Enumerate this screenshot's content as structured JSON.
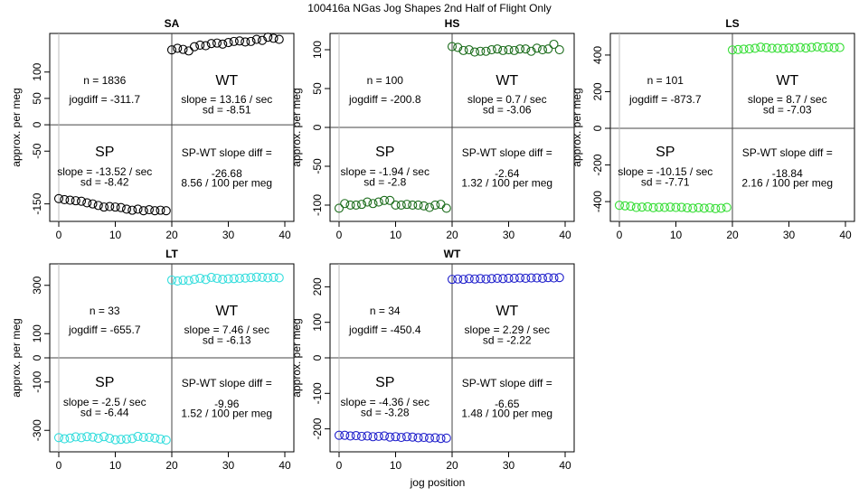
{
  "figure": {
    "title": "100416a   NGas Jog Shapes 2nd Half of Flight Only",
    "shared_xlabel": "jog position",
    "shared_ylabel": "approx. per meg"
  },
  "colors": {
    "SA": "#000000",
    "HS": "#1a6b1a",
    "LS": "#33dd33",
    "LT": "#33dddd",
    "WT": "#2222cc"
  },
  "chart_data": [
    {
      "type": "scatter",
      "title": "SA",
      "color": "#000000",
      "xlabel": "",
      "ylabel": "approx. per meg",
      "xlim": [
        0,
        40
      ],
      "ylim": [
        -170,
        160
      ],
      "xticks": [
        0,
        10,
        20,
        30,
        40
      ],
      "yticks": [
        -150,
        -50,
        0,
        50,
        100
      ],
      "labels": {
        "n": "n = 1836",
        "jogdiff": "jogdiff = -311.7",
        "wt": "WT",
        "wt_slope": "slope = 13.16 / sec",
        "wt_sd": "sd = -8.51",
        "sp": "SP",
        "sp_slope": "slope = -13.52 / sec",
        "sp_sd": "sd = -8.42",
        "diff_title": "SP-WT slope diff =",
        "diff_val": "-26.68",
        "diff_rate": "8.56 / 100 per meg"
      },
      "series": [
        {
          "name": "SP",
          "x": [
            0,
            1,
            2,
            3,
            4,
            5,
            6,
            7,
            8,
            9,
            10,
            11,
            12,
            13,
            14,
            15,
            16,
            17,
            18,
            19
          ],
          "y": [
            -140,
            -142,
            -143,
            -144,
            -145,
            -148,
            -150,
            -153,
            -156,
            -155,
            -156,
            -157,
            -160,
            -162,
            -160,
            -163,
            -161,
            -163,
            -162,
            -163
          ]
        },
        {
          "name": "WT",
          "x": [
            20,
            21,
            22,
            23,
            24,
            25,
            26,
            27,
            28,
            29,
            30,
            31,
            32,
            33,
            34,
            35,
            36,
            37,
            38,
            39
          ],
          "y": [
            142,
            145,
            143,
            140,
            148,
            151,
            150,
            154,
            155,
            153,
            156,
            158,
            159,
            157,
            158,
            162,
            160,
            166,
            164,
            162
          ]
        }
      ]
    },
    {
      "type": "scatter",
      "title": "HS",
      "color": "#1a6b1a",
      "xlabel": "",
      "ylabel": "approx. per meg",
      "xlim": [
        0,
        40
      ],
      "ylim": [
        -112,
        112
      ],
      "xticks": [
        0,
        10,
        20,
        30,
        40
      ],
      "yticks": [
        -100,
        -50,
        0,
        50,
        100
      ],
      "labels": {
        "n": "n = 100",
        "jogdiff": "jogdiff = -200.8",
        "wt": "WT",
        "wt_slope": "slope = 0.7 / sec",
        "wt_sd": "sd = -3.06",
        "sp": "SP",
        "sp_slope": "slope = -1.94 / sec",
        "sp_sd": "sd = -2.8",
        "diff_title": "SP-WT slope diff =",
        "diff_val": "-2.64",
        "diff_rate": "1.32 / 100 per meg"
      },
      "series": [
        {
          "name": "SP",
          "x": [
            0,
            1,
            2,
            3,
            4,
            5,
            6,
            7,
            8,
            9,
            10,
            11,
            12,
            13,
            14,
            15,
            16,
            17,
            18,
            19
          ],
          "y": [
            -104,
            -98,
            -100,
            -100,
            -99,
            -96,
            -98,
            -96,
            -94,
            -94,
            -100,
            -100,
            -99,
            -100,
            -100,
            -101,
            -103,
            -100,
            -99,
            -104
          ]
        },
        {
          "name": "WT",
          "x": [
            20,
            21,
            22,
            23,
            24,
            25,
            26,
            27,
            28,
            29,
            30,
            31,
            32,
            33,
            34,
            35,
            36,
            37,
            38,
            39
          ],
          "y": [
            104,
            103,
            99,
            100,
            97,
            98,
            98,
            100,
            101,
            99,
            100,
            99,
            101,
            101,
            98,
            102,
            100,
            101,
            107,
            100
          ]
        }
      ]
    },
    {
      "type": "scatter",
      "title": "LS",
      "color": "#33dd33",
      "xlabel": "",
      "ylabel": "approx. per meg",
      "xlim": [
        0,
        40
      ],
      "ylim": [
        -470,
        480
      ],
      "xticks": [
        0,
        10,
        20,
        30,
        40
      ],
      "yticks": [
        -400,
        -200,
        0,
        200,
        400
      ],
      "labels": {
        "n": "n = 101",
        "jogdiff": "jogdiff = -873.7",
        "wt": "WT",
        "wt_slope": "slope = 8.7 / sec",
        "wt_sd": "sd = -7.03",
        "sp": "SP",
        "sp_slope": "slope = -10.15 / sec",
        "sp_sd": "sd = -7.71",
        "diff_title": "SP-WT slope diff =",
        "diff_val": "-18.84",
        "diff_rate": "2.16 / 100 per meg"
      },
      "series": [
        {
          "name": "SP",
          "x": [
            0,
            1,
            2,
            3,
            4,
            5,
            6,
            7,
            8,
            9,
            10,
            11,
            12,
            13,
            14,
            15,
            16,
            17,
            18,
            19
          ],
          "y": [
            -420,
            -423,
            -425,
            -432,
            -430,
            -428,
            -433,
            -431,
            -432,
            -430,
            -432,
            -431,
            -434,
            -436,
            -433,
            -436,
            -434,
            -438,
            -436,
            -432
          ]
        },
        {
          "name": "WT",
          "x": [
            20,
            21,
            22,
            23,
            24,
            25,
            26,
            27,
            28,
            29,
            30,
            31,
            32,
            33,
            34,
            35,
            36,
            37,
            38,
            39
          ],
          "y": [
            428,
            430,
            432,
            434,
            437,
            443,
            440,
            437,
            437,
            435,
            438,
            437,
            441,
            438,
            442,
            445,
            440,
            443,
            440,
            441
          ]
        }
      ]
    },
    {
      "type": "scatter",
      "title": "LT",
      "color": "#33dddd",
      "xlabel": "",
      "ylabel": "approx. per meg",
      "xlim": [
        0,
        40
      ],
      "ylim": [
        -360,
        360
      ],
      "xticks": [
        0,
        10,
        20,
        30,
        40
      ],
      "yticks": [
        -300,
        -100,
        0,
        100,
        300
      ],
      "labels": {
        "n": "n = 33",
        "jogdiff": "jogdiff = -655.7",
        "wt": "WT",
        "wt_slope": "slope = 7.46 / sec",
        "wt_sd": "sd = -6.13",
        "sp": "SP",
        "sp_slope": "slope = -2.5 / sec",
        "sp_sd": "sd = -6.44",
        "diff_title": "SP-WT slope diff =",
        "diff_val": "-9.96",
        "diff_rate": "1.52 / 100 per meg"
      },
      "series": [
        {
          "name": "SP",
          "x": [
            0,
            1,
            2,
            3,
            4,
            5,
            6,
            7,
            8,
            9,
            10,
            11,
            12,
            13,
            14,
            15,
            16,
            17,
            18,
            19
          ],
          "y": [
            -330,
            -335,
            -332,
            -327,
            -330,
            -326,
            -328,
            -333,
            -326,
            -333,
            -339,
            -337,
            -336,
            -334,
            -325,
            -329,
            -329,
            -332,
            -336,
            -340
          ]
        },
        {
          "name": "WT",
          "x": [
            20,
            21,
            22,
            23,
            24,
            25,
            26,
            27,
            28,
            29,
            30,
            31,
            32,
            33,
            34,
            35,
            36,
            37,
            38,
            39
          ],
          "y": [
            322,
            318,
            321,
            320,
            325,
            329,
            324,
            333,
            329,
            325,
            327,
            328,
            329,
            330,
            332,
            334,
            333,
            331,
            333,
            331
          ]
        }
      ]
    },
    {
      "type": "scatter",
      "title": "WT",
      "color": "#2222cc",
      "xlabel": "jog position",
      "ylabel": "approx. per meg",
      "xlim": [
        0,
        40
      ],
      "ylim": [
        -245,
        245
      ],
      "xticks": [
        0,
        10,
        20,
        30,
        40
      ],
      "yticks": [
        -200,
        -100,
        0,
        100,
        200
      ],
      "labels": {
        "n": "n = 34",
        "jogdiff": "jogdiff = -450.4",
        "wt": "WT",
        "wt_slope": "slope = 2.29 / sec",
        "wt_sd": "sd = -2.22",
        "sp": "SP",
        "sp_slope": "slope = -4.36 / sec",
        "sp_sd": "sd = -3.28",
        "diff_title": "SP-WT slope diff =",
        "diff_val": "-6.65",
        "diff_rate": "1.48 / 100 per meg"
      },
      "series": [
        {
          "name": "SP",
          "x": [
            0,
            1,
            2,
            3,
            4,
            5,
            6,
            7,
            8,
            9,
            10,
            11,
            12,
            13,
            14,
            15,
            16,
            17,
            18,
            19
          ],
          "y": [
            -218,
            -218,
            -220,
            -219,
            -221,
            -220,
            -222,
            -221,
            -220,
            -223,
            -222,
            -224,
            -222,
            -223,
            -225,
            -224,
            -226,
            -225,
            -227,
            -226
          ]
        },
        {
          "name": "WT",
          "x": [
            20,
            21,
            22,
            23,
            24,
            25,
            26,
            27,
            28,
            29,
            30,
            31,
            32,
            33,
            34,
            35,
            36,
            37,
            38,
            39
          ],
          "y": [
            221,
            222,
            221,
            223,
            222,
            223,
            222,
            223,
            224,
            223,
            224,
            224,
            225,
            224,
            225,
            225,
            224,
            226,
            225,
            226
          ]
        }
      ]
    }
  ]
}
